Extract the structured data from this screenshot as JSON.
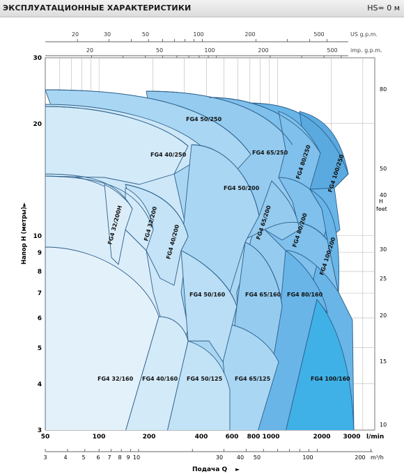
{
  "header": {
    "title": "ЭКСПЛУАТАЦИОННЫЕ ХАРАКТЕРИСТИКИ",
    "hs": "HS= 0 м"
  },
  "colors": {
    "c1": "#dcedfa",
    "c2": "#cde7f8",
    "c3": "#a9d6f3",
    "c4": "#94cbef",
    "c5": "#7fc0ec",
    "c6": "#69b5e8",
    "c7": "#3fb1e6",
    "stroke": "#2c5f8a"
  },
  "chart_data": {
    "type": "area",
    "title": "",
    "xlabel": "Подача Q",
    "xunit_top": "l/min",
    "xunit_bottom": "m³/h",
    "ylabel": "Напор H (метры)",
    "ylabel_right": "H feet",
    "x_scale": "log",
    "y_scale": "log",
    "xlim_lmin": [
      50,
      3500
    ],
    "ylim_m": [
      3,
      30
    ],
    "grid": true,
    "top_axes": [
      {
        "label": "US g.p.m.",
        "ticks": [
          "20",
          "30",
          "50",
          "100",
          "200",
          "500"
        ]
      },
      {
        "label": "imp. g.p.m.",
        "ticks": [
          "20",
          "50",
          "100",
          "200",
          "500"
        ]
      }
    ],
    "x_ticks_lmin": [
      "50",
      "100",
      "200",
      "400",
      "600",
      "800",
      "1000",
      "2000",
      "3000"
    ],
    "x_ticks_m3h": [
      "3",
      "4",
      "5",
      "6",
      "7",
      "8",
      "9",
      "10",
      "30",
      "40",
      "50",
      "100",
      "200"
    ],
    "y_ticks_m": [
      "3",
      "4",
      "5",
      "6",
      "7",
      "8",
      "9",
      "10",
      "20",
      "30"
    ],
    "y_ticks_ft": [
      "10",
      "15",
      "20",
      "25",
      "30",
      "40",
      "50",
      "80"
    ],
    "series": [
      {
        "name": "FG4 32/160",
        "q_lmin": [
          50,
          175
        ],
        "h_m": [
          3,
          9.2
        ]
      },
      {
        "name": "FG4 32/200H",
        "q_lmin": [
          50,
          155
        ],
        "h_m": [
          8.0,
          14.5
        ]
      },
      {
        "name": "FG4 32/200",
        "q_lmin": [
          140,
          180
        ],
        "h_m": [
          8.0,
          13.5
        ]
      },
      {
        "name": "FG4 40/160",
        "q_lmin": [
          140,
          300
        ],
        "h_m": [
          3,
          6.0
        ]
      },
      {
        "name": "FG4 40/200",
        "q_lmin": [
          175,
          360
        ],
        "h_m": [
          7.5,
          13.0
        ]
      },
      {
        "name": "FG4 40/250",
        "q_lmin": [
          50,
          260
        ],
        "h_m": [
          9.0,
          22.5
        ]
      },
      {
        "name": "FG4 50/125",
        "q_lmin": [
          215,
          600
        ],
        "h_m": [
          3,
          5.3
        ]
      },
      {
        "name": "FG4 50/160",
        "q_lmin": [
          230,
          620
        ],
        "h_m": [
          5.8,
          9.5
        ]
      },
      {
        "name": "FG4 50/200",
        "q_lmin": [
          250,
          660
        ],
        "h_m": [
          7.5,
          17.5
        ]
      },
      {
        "name": "FG4 50/250",
        "q_lmin": [
          50,
          620
        ],
        "h_m": [
          14.5,
          24.0
        ]
      },
      {
        "name": "FG4 65/125",
        "q_lmin": [
          560,
          1010
        ],
        "h_m": [
          3,
          5.7
        ]
      },
      {
        "name": "FG4 65/160",
        "q_lmin": [
          330,
          1100
        ],
        "h_m": [
          5.5,
          10.0
        ]
      },
      {
        "name": "FG4 65/200",
        "q_lmin": [
          390,
          1200
        ],
        "h_m": [
          9.5,
          17.5
        ]
      },
      {
        "name": "FG4 65/250",
        "q_lmin": [
          230,
          1100
        ],
        "h_m": [
          14.0,
          23.0
        ]
      },
      {
        "name": "FG4 80/160",
        "q_lmin": [
          650,
          1950
        ],
        "h_m": [
          3,
          9.5
        ]
      },
      {
        "name": "FG4 80/200",
        "q_lmin": [
          880,
          2000
        ],
        "h_m": [
          9.5,
          15.0
        ]
      },
      {
        "name": "FG4 80/250",
        "q_lmin": [
          700,
          2050
        ],
        "h_m": [
          14.0,
          22.0
        ]
      },
      {
        "name": "FG4 100/160",
        "q_lmin": [
          1250,
          3350
        ],
        "h_m": [
          3,
          7.0
        ]
      },
      {
        "name": "FG4 100/200",
        "q_lmin": [
          1150,
          2650
        ],
        "h_m": [
          6.5,
          14.5
        ]
      },
      {
        "name": "FG4 100/250",
        "q_lmin": [
          900,
          2550
        ],
        "h_m": [
          13.5,
          22.0
        ]
      }
    ]
  },
  "labels": {
    "fg4_32_160": "FG4 32/160",
    "fg4_40_160": "FG4 40/160",
    "fg4_50_125": "FG4 50/125",
    "fg4_65_125": "FG4 65/125",
    "fg4_100_160": "FG4 100/160",
    "fg4_50_160": "FG4 50/160",
    "fg4_65_160": "FG4 65/160",
    "fg4_80_160": "FG4 80/160",
    "fg4_50_200": "FG4 50/200",
    "fg4_40_250": "FG4 40/250",
    "fg4_50_250": "FG4 50/250",
    "fg4_65_250": "FG4 65/250",
    "fg4_32_200h": "FG4 32/200H",
    "fg4_32_200": "FG4 32/200",
    "fg4_40_200": "FG4 40/200",
    "fg4_65_200": "FG4 65/200",
    "fg4_80_200": "FG4 80/200",
    "fg4_100_200": "FG4 100/200",
    "fg4_80_250": "FG4 80/250",
    "fg4_100_250": "FG4 100/250"
  }
}
